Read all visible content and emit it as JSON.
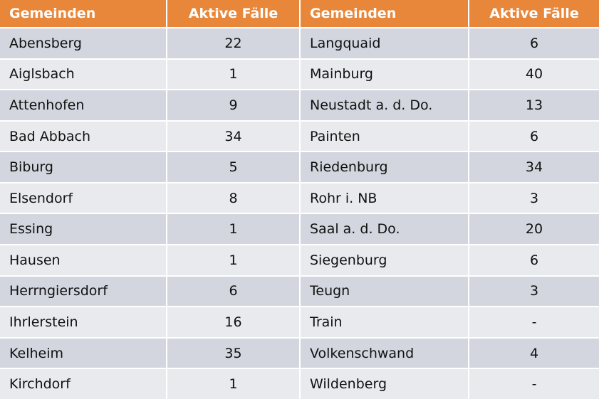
{
  "table": {
    "header": [
      "Gemeinden",
      "Aktive Fälle",
      "Gemeinden",
      "Aktive Fälle"
    ],
    "rows": [
      [
        "Abensberg",
        22,
        "Langquaid",
        6
      ],
      [
        "Aiglsbach",
        1,
        "Mainburg",
        40
      ],
      [
        "Attenhofen",
        9,
        "Neustadt a. d. Do.",
        13
      ],
      [
        "Bad Abbach",
        34,
        "Painten",
        6
      ],
      [
        "Biburg",
        5,
        "Riedenburg",
        34
      ],
      [
        "Elsendorf",
        8,
        "Rohr i. NB",
        3
      ],
      [
        "Essing",
        1,
        "Saal a. d. Do.",
        20
      ],
      [
        "Hausen",
        1,
        "Siegenburg",
        6
      ],
      [
        "Herrngiersdorf",
        6,
        "Teugn",
        3
      ],
      [
        "Ihrlerstein",
        16,
        "Train",
        "-"
      ],
      [
        "Kelheim",
        35,
        "Volkenschwand",
        4
      ],
      [
        "Kirchdorf",
        1,
        "Wildenberg",
        "-"
      ]
    ]
  }
}
